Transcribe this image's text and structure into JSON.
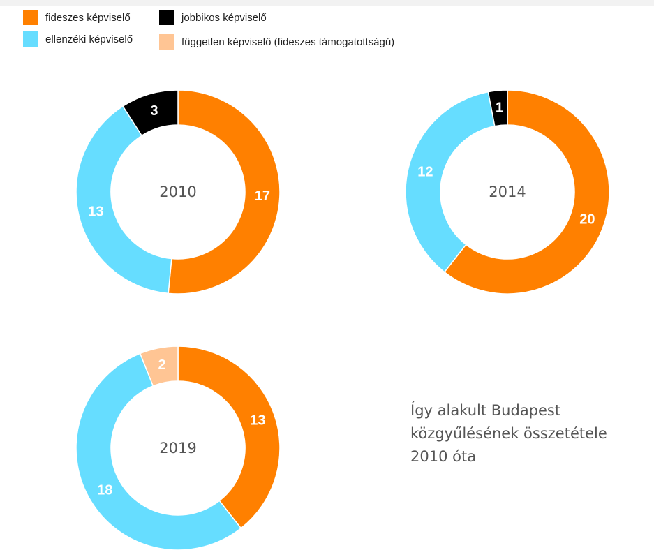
{
  "legend": [
    {
      "label": "fideszes képviselő",
      "color": "#ff8000"
    },
    {
      "label": "jobbikos képviselő",
      "color": "#000000"
    },
    {
      "label": "ellenzéki képviselő",
      "color": "#66ddff"
    },
    {
      "label": "független képviselő (fideszes támogatottságú)",
      "color": "#ffc594"
    }
  ],
  "caption": [
    "Így alakult Budapest",
    "közgyűlésének összetétele",
    "2010 óta"
  ],
  "chart_data": [
    {
      "type": "pie",
      "center_label": "2010",
      "slices": [
        {
          "category": "fideszes képviselő",
          "value": 17,
          "color": "#ff8000"
        },
        {
          "category": "ellenzéki képviselő",
          "value": 13,
          "color": "#66ddff"
        },
        {
          "category": "jobbikos képviselő",
          "value": 3,
          "color": "#000000"
        }
      ]
    },
    {
      "type": "pie",
      "center_label": "2014",
      "slices": [
        {
          "category": "fideszes képviselő",
          "value": 20,
          "color": "#ff8000"
        },
        {
          "category": "ellenzéki képviselő",
          "value": 12,
          "color": "#66ddff"
        },
        {
          "category": "jobbikos képviselő",
          "value": 1,
          "color": "#000000"
        }
      ]
    },
    {
      "type": "pie",
      "center_label": "2019",
      "slices": [
        {
          "category": "fideszes képviselő",
          "value": 13,
          "color": "#ff8000"
        },
        {
          "category": "ellenzéki képviselő",
          "value": 18,
          "color": "#66ddff"
        },
        {
          "category": "független képviselő (fideszes támogatottságú)",
          "value": 2,
          "color": "#ffc594"
        }
      ]
    }
  ]
}
